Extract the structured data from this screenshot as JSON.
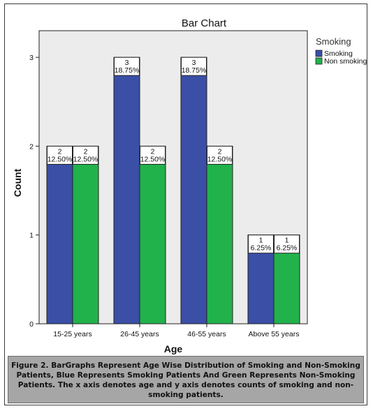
{
  "chart_data": {
    "type": "bar",
    "title": "Bar Chart",
    "xlabel": "Age",
    "ylabel": "Count",
    "categories": [
      "15-25 years",
      "26-45 years",
      "46-55 years",
      "Above 55 years"
    ],
    "series": [
      {
        "name": "Smoking",
        "color": "#3a4fa5",
        "values": [
          2,
          3,
          3,
          1
        ],
        "labels": [
          "12.50%",
          "18.75%",
          "18.75%",
          "6.25%"
        ]
      },
      {
        "name": "Non smoking",
        "color": "#21b24b",
        "values": [
          2,
          2,
          2,
          1
        ],
        "labels": [
          "12.50%",
          "12.50%",
          "12.50%",
          "6.25%"
        ]
      }
    ],
    "yticks": [
      "0",
      "1",
      "2",
      "3"
    ],
    "ylim": [
      0,
      3.3
    ],
    "legend_title": "Smoking",
    "legend_position": "right",
    "plot_background": "#ececec",
    "grid": false
  },
  "caption": "Figure 2. BarGraphs Represent Age Wise Distribution of Smoking and Non-Smoking Patients, Blue Represents Smoking Patients And Green Represents Non-Smoking Patients. The x axis denotes age and y axis denotes counts of smoking and non-smoking patients."
}
